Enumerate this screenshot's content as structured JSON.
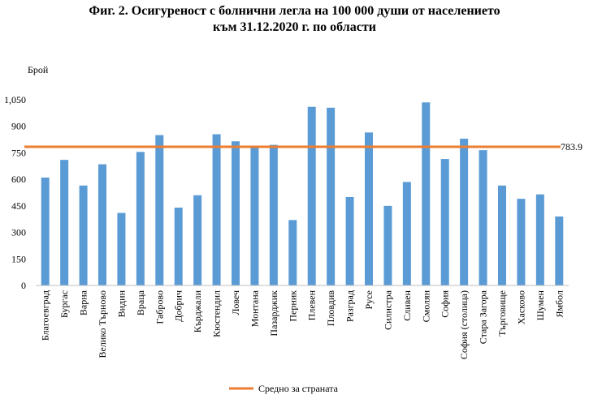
{
  "title_line1": "Фиг. 2. Осигуреност с болнични легла на 100 000 души от населението",
  "title_line2": "към 31.12.2020 г. по области",
  "chart_data": {
    "type": "bar",
    "ylabel": "Брой",
    "ylim": [
      0,
      1050
    ],
    "yticks": [
      0,
      150,
      300,
      450,
      600,
      750,
      900,
      1050
    ],
    "categories": [
      "Благоевград",
      "Бургас",
      "Варна",
      "Велико Търново",
      "Видин",
      "Враца",
      "Габрово",
      "Добрич",
      "Кърджали",
      "Кюстендил",
      "Ловеч",
      "Монтана",
      "Пазарджик",
      "Перник",
      "Плевен",
      "Пловдив",
      "Разград",
      "Русе",
      "Силистра",
      "Сливен",
      "Смолян",
      "София",
      "София (столица)",
      "Стара Загора",
      "Търговище",
      "Хасково",
      "Шумен",
      "Ямбол"
    ],
    "series": [
      {
        "values": [
          610,
          710,
          565,
          685,
          410,
          755,
          850,
          440,
          510,
          855,
          815,
          780,
          795,
          370,
          1010,
          1005,
          500,
          865,
          450,
          585,
          1035,
          715,
          830,
          765,
          565,
          490,
          515,
          390
        ],
        "color": "#5b9bd5"
      }
    ],
    "reference_line": {
      "name": "Средно за страната",
      "value": 783.9,
      "label": "783.9",
      "color": "#ed7d31"
    },
    "legend_position": "bottom",
    "grid": false
  }
}
